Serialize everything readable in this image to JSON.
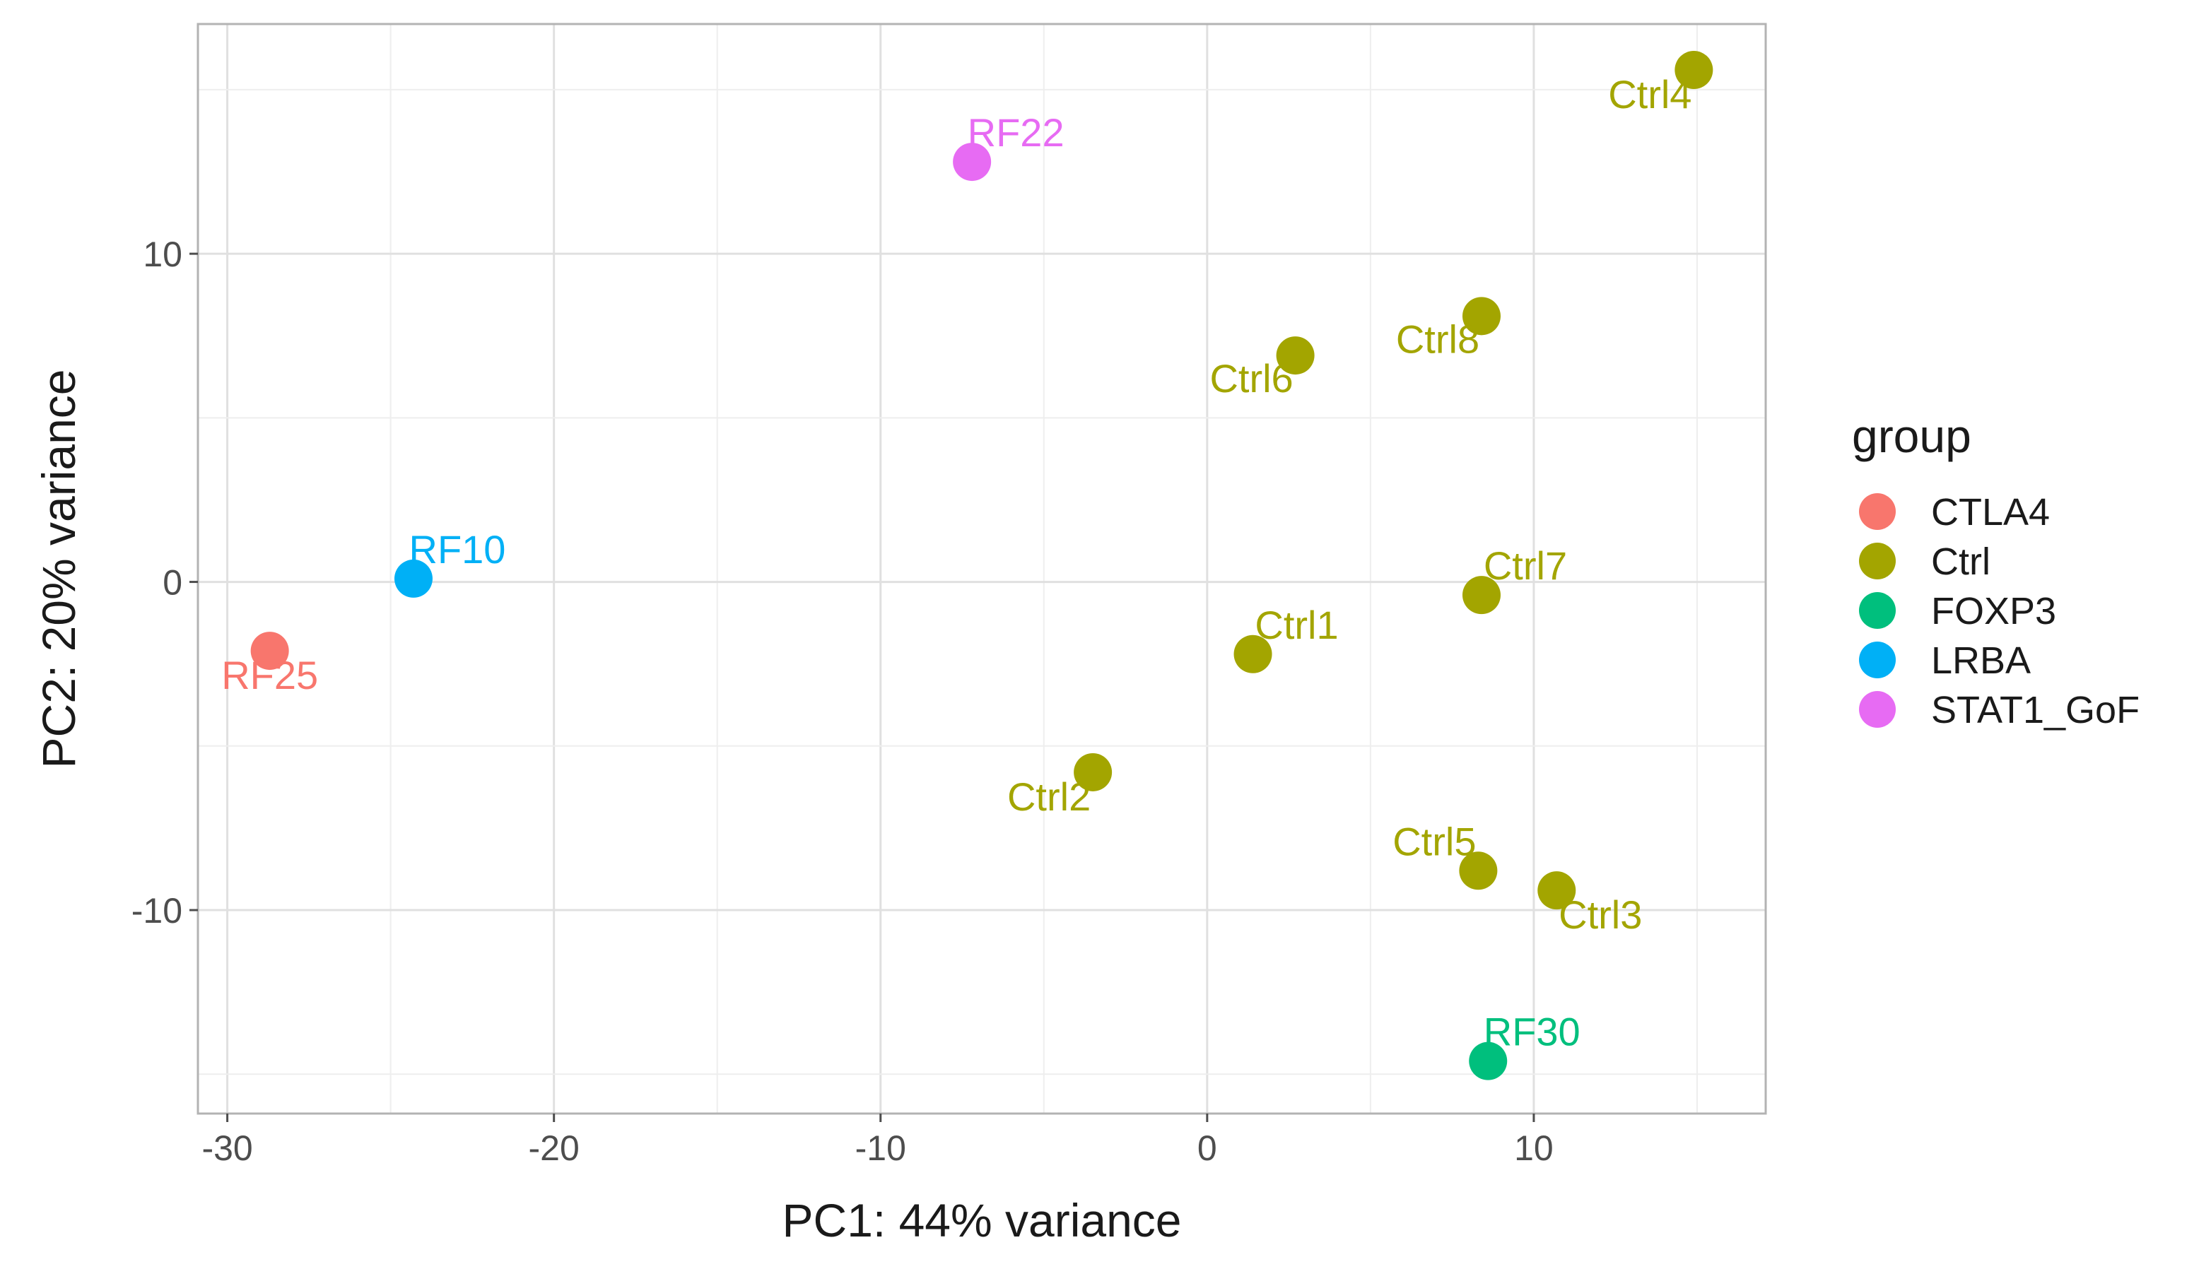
{
  "chart_data": {
    "type": "scatter",
    "xlabel": "PC1: 44% variance",
    "ylabel": "PC2: 20% variance",
    "xlim": [
      -30.9,
      17.1
    ],
    "ylim": [
      -16.2,
      17.0
    ],
    "x_ticks": [
      -30,
      -20,
      -10,
      0,
      10
    ],
    "y_ticks": [
      -10,
      0,
      10
    ],
    "x_tick_labels": [
      "-30",
      "-20",
      "-10",
      "0",
      "10"
    ],
    "y_tick_labels": [
      "-10",
      "0",
      "10"
    ],
    "grid": true,
    "legend": {
      "title": "group",
      "position": "right",
      "entries": [
        {
          "name": "CTLA4",
          "color": "#F8766D"
        },
        {
          "name": "Ctrl",
          "color": "#A3A500"
        },
        {
          "name": "FOXP3",
          "color": "#00BF7D"
        },
        {
          "name": "LRBA",
          "color": "#00B0F6"
        },
        {
          "name": "STAT1_GoF",
          "color": "#E76BF3"
        }
      ]
    },
    "points": [
      {
        "label": "RF25",
        "group": "CTLA4",
        "x": -28.7,
        "y": -2.1
      },
      {
        "label": "RF10",
        "group": "LRBA",
        "x": -24.3,
        "y": 0.1
      },
      {
        "label": "RF22",
        "group": "STAT1_GoF",
        "x": -7.2,
        "y": 12.8
      },
      {
        "label": "Ctrl4",
        "group": "Ctrl",
        "x": 14.9,
        "y": 15.6
      },
      {
        "label": "Ctrl8",
        "group": "Ctrl",
        "x": 8.4,
        "y": 8.1
      },
      {
        "label": "Ctrl6",
        "group": "Ctrl",
        "x": 2.7,
        "y": 6.9
      },
      {
        "label": "Ctrl7",
        "group": "Ctrl",
        "x": 8.4,
        "y": -0.4
      },
      {
        "label": "Ctrl1",
        "group": "Ctrl",
        "x": 1.4,
        "y": -2.2
      },
      {
        "label": "Ctrl2",
        "group": "Ctrl",
        "x": -3.5,
        "y": -5.8
      },
      {
        "label": "Ctrl5",
        "group": "Ctrl",
        "x": 8.3,
        "y": -8.8
      },
      {
        "label": "Ctrl3",
        "group": "Ctrl",
        "x": 10.7,
        "y": -9.4
      },
      {
        "label": "RF30",
        "group": "FOXP3",
        "x": 8.6,
        "y": -14.6
      }
    ]
  }
}
